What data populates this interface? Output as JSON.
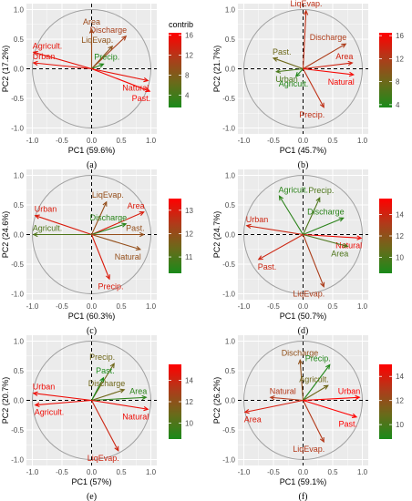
{
  "colors": {
    "panel_bg": "#ebebeb",
    "grid": "#ffffff",
    "circle": "#a0a0a0",
    "axis_text": "#4d4d4d",
    "gradient": [
      "#1a8a1a",
      "#6a6a1a",
      "#b03a1a",
      "#ff0000"
    ]
  },
  "legend_title": "contrib",
  "chart_data": [
    {
      "type": "scatter",
      "caption": "(a)",
      "xlabel": "PC1 (59.6%)",
      "ylabel": "PC2 (17.2%)",
      "xlim": [
        -1,
        1
      ],
      "ylim": [
        -1,
        1
      ],
      "xticks": [
        "-1.0",
        "-0.5",
        "0.0",
        "0.5",
        "1.0"
      ],
      "yticks": [
        "1.0",
        "0.5",
        "0.0",
        "-0.5",
        "-1.0"
      ],
      "grid": true,
      "legend_title": "contrib",
      "legend_range": [
        1.5,
        16.5
      ],
      "legend_ticks": [
        16,
        12,
        8,
        4
      ],
      "variables": [
        {
          "name": "Area",
          "x": 0.0,
          "y": 0.67,
          "contrib": 10
        },
        {
          "name": "Discharge",
          "x": 0.58,
          "y": 0.55,
          "contrib": 11
        },
        {
          "name": "Agricult.",
          "x": -0.98,
          "y": 0.28,
          "contrib": 15
        },
        {
          "name": "Urban",
          "x": -0.98,
          "y": 0.1,
          "contrib": 15
        },
        {
          "name": "LiqEvap.",
          "x": 0.35,
          "y": 0.38,
          "contrib": 9
        },
        {
          "name": "Precip.",
          "x": 0.2,
          "y": 0.08,
          "contrib": 2
        },
        {
          "name": "Natural",
          "x": 0.95,
          "y": -0.2,
          "contrib": 15
        },
        {
          "name": "Past.",
          "x": 0.98,
          "y": -0.38,
          "contrib": 16
        }
      ]
    },
    {
      "type": "scatter",
      "caption": "(b)",
      "xlabel": "PC1 (45.7%)",
      "ylabel": "PC2 (21.7%)",
      "xlim": [
        -1,
        1
      ],
      "ylim": [
        -1,
        1
      ],
      "xticks": [
        "-1.0",
        "-0.5",
        "0.0",
        "0.5",
        "1.0"
      ],
      "yticks": [
        "1.0",
        "0.5",
        "0.0",
        "-0.5",
        "-1.0"
      ],
      "grid": true,
      "legend_range": [
        3.5,
        16.5
      ],
      "legend_ticks": [
        16,
        12,
        8,
        4
      ],
      "variables": [
        {
          "name": "LiqEvap.",
          "x": 0.05,
          "y": 0.98,
          "contrib": 13
        },
        {
          "name": "Discharge",
          "x": 0.72,
          "y": 0.42,
          "contrib": 12
        },
        {
          "name": "Past.",
          "x": -0.5,
          "y": 0.18,
          "contrib": 8
        },
        {
          "name": "Area",
          "x": 0.83,
          "y": 0.1,
          "contrib": 14
        },
        {
          "name": "Urban",
          "x": -0.45,
          "y": -0.05,
          "contrib": 6
        },
        {
          "name": "Agricult.",
          "x": -0.12,
          "y": -0.13,
          "contrib": 4
        },
        {
          "name": "Natural",
          "x": 0.85,
          "y": -0.1,
          "contrib": 16
        },
        {
          "name": "Precip.",
          "x": 0.35,
          "y": -0.65,
          "contrib": 13
        }
      ]
    },
    {
      "type": "scatter",
      "caption": "(c)",
      "xlabel": "PC1 (60.3%)",
      "ylabel": "PC2 (24.6%)",
      "xlim": [
        -1,
        1
      ],
      "ylim": [
        -1,
        1
      ],
      "xticks": [
        "-1.0",
        "-0.5",
        "0.0",
        "0.5",
        "1.0"
      ],
      "yticks": [
        "1.0",
        "0.5",
        "0.0",
        "-0.5",
        "-1.0"
      ],
      "grid": true,
      "legend_range": [
        10.3,
        13.5
      ],
      "legend_ticks": [
        13,
        12,
        11
      ],
      "variables": [
        {
          "name": "LiqEvap.",
          "x": 0.25,
          "y": 0.55,
          "contrib": 12
        },
        {
          "name": "Area",
          "x": 0.88,
          "y": 0.38,
          "contrib": 13
        },
        {
          "name": "Urban",
          "x": -0.95,
          "y": 0.32,
          "contrib": 13
        },
        {
          "name": "Discharge",
          "x": 0.58,
          "y": 0.18,
          "contrib": 10.5
        },
        {
          "name": "Agricult.",
          "x": -0.98,
          "y": 0.0,
          "contrib": 11
        },
        {
          "name": "Past.",
          "x": 0.88,
          "y": 0.0,
          "contrib": 12
        },
        {
          "name": "Natural",
          "x": 0.82,
          "y": -0.25,
          "contrib": 12
        },
        {
          "name": "Precip.",
          "x": 0.3,
          "y": -0.75,
          "contrib": 13
        }
      ]
    },
    {
      "type": "scatter",
      "caption": "(d)",
      "xlabel": "PC1 (50.7%)",
      "ylabel": "PC2 (24.7%)",
      "xlim": [
        -1,
        1
      ],
      "ylim": [
        -1,
        1
      ],
      "xticks": [
        "-1.0",
        "-0.5",
        "0.0",
        "0.5",
        "1.0"
      ],
      "yticks": [
        "1.0",
        "0.5",
        "0.0",
        "-0.5",
        "-1.0"
      ],
      "grid": true,
      "legend_range": [
        8.5,
        15.5
      ],
      "legend_ticks": [
        14,
        12,
        10
      ],
      "variables": [
        {
          "name": "Agricult.",
          "x": -0.4,
          "y": 0.65,
          "contrib": 9
        },
        {
          "name": "Precip.",
          "x": 0.28,
          "y": 0.62,
          "contrib": 10
        },
        {
          "name": "Urban",
          "x": -0.95,
          "y": 0.15,
          "contrib": 14
        },
        {
          "name": "Discharge",
          "x": 0.68,
          "y": 0.28,
          "contrib": 9
        },
        {
          "name": "Natural",
          "x": 0.98,
          "y": -0.06,
          "contrib": 15
        },
        {
          "name": "Area",
          "x": 0.75,
          "y": -0.2,
          "contrib": 10
        },
        {
          "name": "Past.",
          "x": -0.75,
          "y": -0.42,
          "contrib": 14
        },
        {
          "name": "LiqEvap.",
          "x": 0.35,
          "y": -0.88,
          "contrib": 13
        }
      ]
    },
    {
      "type": "scatter",
      "caption": "(e)",
      "xlabel": "PC1 (57%)",
      "ylabel": "PC2 (20.7%)",
      "xlim": [
        -1,
        1
      ],
      "ylim": [
        -1,
        1
      ],
      "xticks": [
        "-1.0",
        "-0.5",
        "0.0",
        "0.5",
        "1.0"
      ],
      "yticks": [
        "1.0",
        "0.5",
        "0.0",
        "-0.5",
        "-1.0"
      ],
      "grid": true,
      "legend_range": [
        8.5,
        15.5
      ],
      "legend_ticks": [
        14,
        12,
        10
      ],
      "variables": [
        {
          "name": "Precip.",
          "x": 0.38,
          "y": 0.62,
          "contrib": 11
        },
        {
          "name": "Past.",
          "x": 0.2,
          "y": 0.38,
          "contrib": 8.5
        },
        {
          "name": "Urban",
          "x": -0.98,
          "y": 0.12,
          "contrib": 15
        },
        {
          "name": "Discharge",
          "x": 0.55,
          "y": 0.18,
          "contrib": 11
        },
        {
          "name": "Agricult.",
          "x": -0.95,
          "y": -0.08,
          "contrib": 15
        },
        {
          "name": "Area",
          "x": 0.92,
          "y": 0.05,
          "contrib": 9
        },
        {
          "name": "Natural",
          "x": 0.95,
          "y": -0.15,
          "contrib": 15
        },
        {
          "name": "LiqEvap.",
          "x": 0.45,
          "y": -0.85,
          "contrib": 14
        }
      ]
    },
    {
      "type": "scatter",
      "caption": "(f)",
      "xlabel": "PC1 (59.1%)",
      "ylabel": "PC2 (26.2%)",
      "xlim": [
        -1,
        1
      ],
      "ylim": [
        -1,
        1
      ],
      "xticks": [
        "-1.0",
        "-0.5",
        "0.0",
        "0.5",
        "1.0"
      ],
      "yticks": [
        "1.0",
        "0.5",
        "0.0",
        "-0.5",
        "-1.0"
      ],
      "grid": true,
      "legend_range": [
        8.8,
        15.0
      ],
      "legend_ticks": [
        14,
        12,
        10
      ],
      "variables": [
        {
          "name": "Discharge",
          "x": -0.05,
          "y": 0.68,
          "contrib": 12
        },
        {
          "name": "Precip.",
          "x": 0.45,
          "y": 0.6,
          "contrib": 9
        },
        {
          "name": "Agricult.",
          "x": 0.42,
          "y": 0.25,
          "contrib": 11
        },
        {
          "name": "Natural",
          "x": -0.55,
          "y": 0.05,
          "contrib": 13
        },
        {
          "name": "Urban",
          "x": 0.95,
          "y": 0.05,
          "contrib": 15
        },
        {
          "name": "Area",
          "x": -0.98,
          "y": -0.2,
          "contrib": 14
        },
        {
          "name": "Past.",
          "x": 0.9,
          "y": -0.28,
          "contrib": 15
        },
        {
          "name": "LiqEvap.",
          "x": 0.35,
          "y": -0.7,
          "contrib": 13
        }
      ]
    }
  ]
}
